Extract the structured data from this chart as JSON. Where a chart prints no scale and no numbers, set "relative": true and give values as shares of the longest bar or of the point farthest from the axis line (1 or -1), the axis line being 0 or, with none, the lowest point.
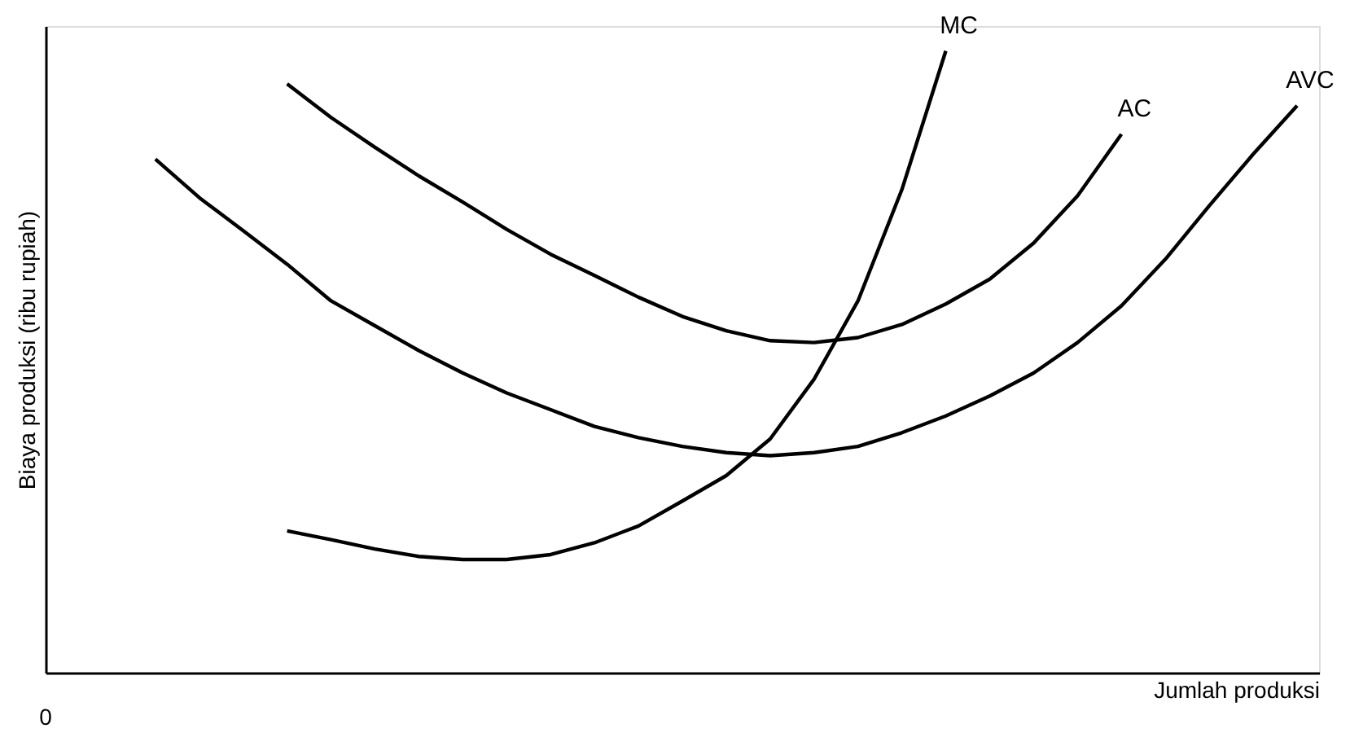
{
  "chart_data": {
    "type": "line",
    "relative": true,
    "xlabel": "Jumlah produksi",
    "ylabel": "Biaya produksi (ribu rupiah)",
    "annotations": [
      "0"
    ],
    "grid": false,
    "legend": false,
    "marker": "none",
    "line_style": "solid",
    "categories": [
      null,
      null,
      null,
      null,
      null,
      null,
      null,
      null,
      null,
      null,
      null,
      null,
      null,
      null,
      null,
      null,
      null,
      null,
      null,
      null,
      null,
      null,
      null,
      null,
      null,
      null,
      null,
      null,
      null
    ],
    "series": [
      {
        "name": "MC",
        "color": "#000000",
        "values": [
          null,
          null,
          null,
          null,
          null,
          0.228,
          0.214,
          0.199,
          0.187,
          0.182,
          0.182,
          0.19,
          0.209,
          0.236,
          0.276,
          0.317,
          0.376,
          0.472,
          0.598,
          0.777,
          1.0,
          null,
          null,
          null,
          null,
          null,
          null,
          null,
          null
        ]
      },
      {
        "name": "AC",
        "color": "#000000",
        "values": [
          null,
          null,
          null,
          null,
          null,
          0.947,
          0.893,
          0.845,
          0.799,
          0.757,
          0.713,
          0.673,
          0.639,
          0.604,
          0.573,
          0.55,
          0.534,
          0.531,
          0.539,
          0.56,
          0.593,
          0.633,
          0.691,
          0.767,
          0.866,
          null,
          null,
          null,
          null
        ]
      },
      {
        "name": "AVC",
        "color": "#000000",
        "values": [
          null,
          null,
          0.826,
          0.764,
          0.711,
          0.657,
          0.598,
          0.558,
          0.518,
          0.482,
          0.45,
          0.423,
          0.396,
          0.378,
          0.364,
          0.354,
          0.349,
          0.354,
          0.364,
          0.386,
          0.413,
          0.445,
          0.482,
          0.531,
          0.59,
          0.665,
          0.751,
          0.834,
          0.912
        ]
      }
    ]
  }
}
